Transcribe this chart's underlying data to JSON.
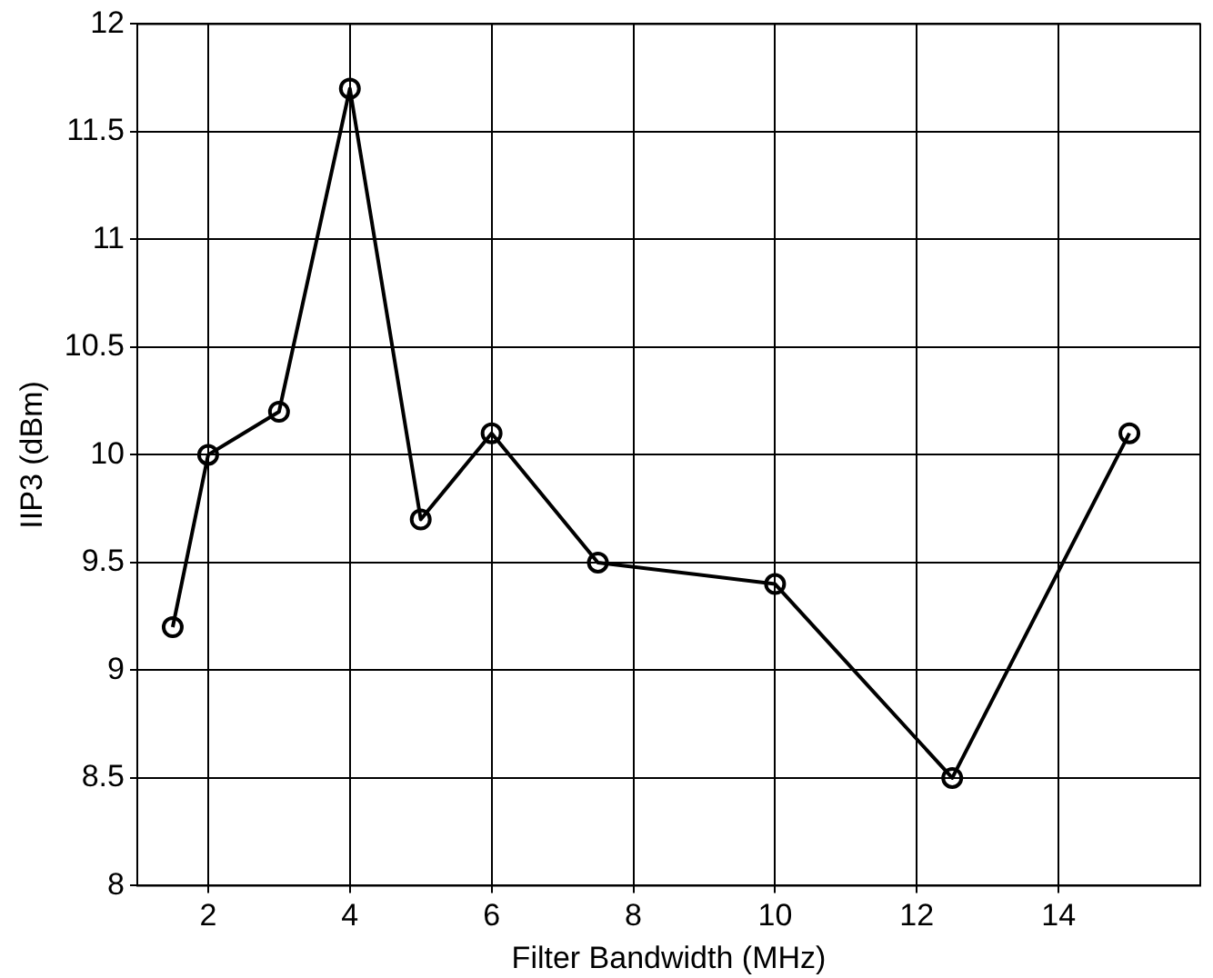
{
  "chart_data": {
    "type": "line",
    "xlabel": "Filter Bandwidth (MHz)",
    "ylabel": "IIP3 (dBm)",
    "x": [
      1.5,
      2,
      3,
      4,
      5,
      6,
      7.5,
      10,
      12.5,
      15
    ],
    "series": [
      {
        "color": "#000000",
        "values": [
          9.2,
          10,
          10.2,
          11.7,
          9.7,
          10.1,
          9.5,
          9.4,
          8.5,
          10.1
        ]
      }
    ],
    "xlim": [
      1,
      16
    ],
    "xticks": [
      2,
      4,
      6,
      8,
      10,
      12,
      14
    ],
    "ylim": [
      8,
      12
    ],
    "yticks": [
      8,
      8.5,
      9,
      9.5,
      10,
      10.5,
      11,
      11.5,
      12
    ],
    "grid": true,
    "marker": "circle",
    "line_style": "solid"
  }
}
